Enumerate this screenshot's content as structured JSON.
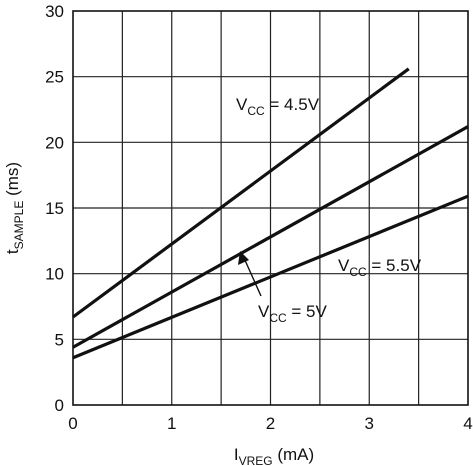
{
  "chart_data": {
    "type": "line",
    "xlabel": {
      "main": "I",
      "sub": "VREG",
      "unit": " (mA)"
    },
    "ylabel": {
      "main": "t",
      "sub": "SAMPLE",
      "unit": " (ms)"
    },
    "xlim": [
      0,
      4
    ],
    "ylim": [
      0,
      30
    ],
    "x_ticks": [
      0,
      1,
      2,
      3,
      4
    ],
    "y_ticks": [
      0,
      5,
      10,
      15,
      20,
      25,
      30
    ],
    "x_grid_step": 0.5,
    "y_grid_step": 5,
    "grid": true,
    "legend": "inline labels",
    "series": [
      {
        "name": "VCC = 4.5V",
        "label": {
          "main": "V",
          "sub": "CC",
          "rest": " = 4.5V"
        },
        "x": [
          0,
          3.4
        ],
        "y": [
          6.7,
          25.6
        ],
        "color": "#111111"
      },
      {
        "name": "VCC = 5V",
        "label": {
          "main": "V",
          "sub": "CC",
          "rest": " = 5V"
        },
        "x": [
          0,
          4
        ],
        "y": [
          4.4,
          21.2
        ],
        "color": "#111111"
      },
      {
        "name": "VCC = 5.5V",
        "label": {
          "main": "V",
          "sub": "CC",
          "rest": " = 5.5V"
        },
        "x": [
          0,
          4
        ],
        "y": [
          3.6,
          15.9
        ],
        "color": "#111111"
      }
    ]
  }
}
